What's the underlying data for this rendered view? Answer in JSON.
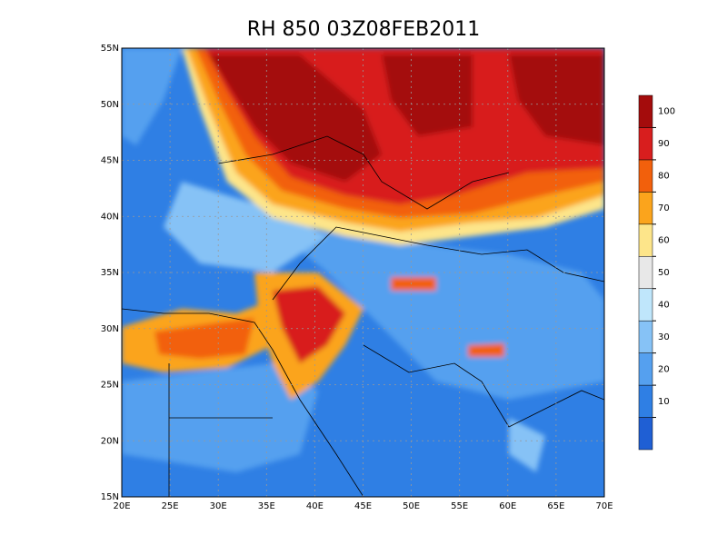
{
  "title": "RH 850 03Z08FEB2011",
  "map": {
    "lonlim": [
      20,
      70
    ],
    "latlim": [
      15,
      55
    ],
    "lon_ticks": [
      {
        "value": 20,
        "label": "20E"
      },
      {
        "value": 25,
        "label": "25E"
      },
      {
        "value": 30,
        "label": "30E"
      },
      {
        "value": 35,
        "label": "35E"
      },
      {
        "value": 40,
        "label": "40E"
      },
      {
        "value": 45,
        "label": "45E"
      },
      {
        "value": 50,
        "label": "50E"
      },
      {
        "value": 55,
        "label": "55E"
      },
      {
        "value": 60,
        "label": "60E"
      },
      {
        "value": 65,
        "label": "65E"
      },
      {
        "value": 70,
        "label": "70E"
      }
    ],
    "lat_ticks": [
      {
        "value": 15,
        "label": "15N"
      },
      {
        "value": 20,
        "label": "20N"
      },
      {
        "value": 25,
        "label": "25N"
      },
      {
        "value": 30,
        "label": "30N"
      },
      {
        "value": 35,
        "label": "35N"
      },
      {
        "value": 40,
        "label": "40N"
      },
      {
        "value": 45,
        "label": "45N"
      },
      {
        "value": 50,
        "label": "50N"
      },
      {
        "value": 55,
        "label": "55N"
      }
    ]
  },
  "colorbar": {
    "levels": [
      10,
      20,
      30,
      40,
      50,
      60,
      70,
      80,
      90,
      100
    ],
    "colors": [
      "#1f5fd4",
      "#2f7fe4",
      "#55a0ef",
      "#86c2f6",
      "#bfe6fb",
      "#e8e8e8",
      "#fde58a",
      "#fba41c",
      "#f2600c",
      "#d81e1e",
      "#a40c0c"
    ]
  }
}
